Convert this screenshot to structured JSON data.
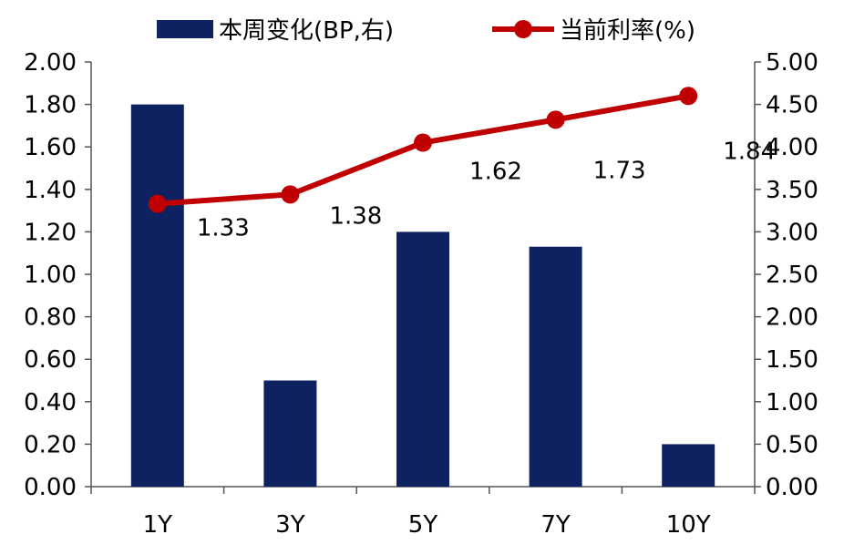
{
  "chart_data": {
    "type": "bar+line",
    "categories": [
      "1Y",
      "3Y",
      "5Y",
      "7Y",
      "10Y"
    ],
    "series": [
      {
        "name": "本周变化(BP,右)",
        "type": "bar",
        "axis": "left",
        "color": "#0e2262",
        "values": [
          1.8,
          0.5,
          1.2,
          1.13,
          0.2
        ]
      },
      {
        "name": "当前利率(%)",
        "type": "line",
        "axis": "right",
        "color": "#c00000",
        "values": [
          3.33,
          3.44,
          4.05,
          4.32,
          4.6
        ]
      }
    ],
    "data_labels": [
      "1.33",
      "1.38",
      "1.62",
      "1.73",
      "1.84"
    ],
    "y_left": {
      "min": 0,
      "max": 2.0,
      "step": 0.2,
      "ticks": [
        "0.00",
        "0.20",
        "0.40",
        "0.60",
        "0.80",
        "1.00",
        "1.20",
        "1.40",
        "1.60",
        "1.80",
        "2.00"
      ]
    },
    "y_right": {
      "min": 0,
      "max": 5.0,
      "step": 0.5,
      "ticks": [
        "0.00",
        "0.50",
        "1.00",
        "1.50",
        "2.00",
        "2.50",
        "3.00",
        "3.50",
        "4.00",
        "4.50",
        "5.00"
      ]
    },
    "legend_position": "top",
    "grid": false,
    "title": "",
    "xlabel": "",
    "ylabel": ""
  }
}
